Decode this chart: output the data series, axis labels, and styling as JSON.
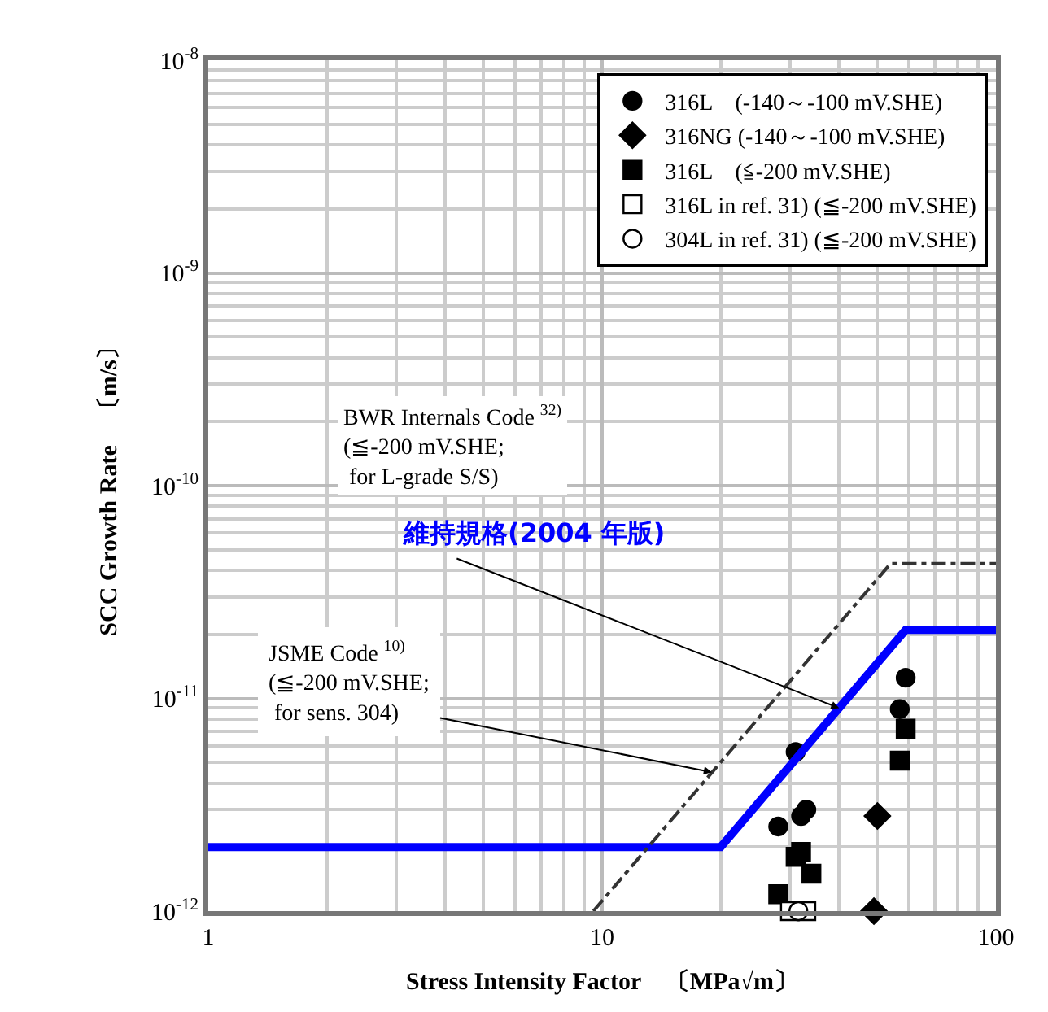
{
  "chart_data": {
    "type": "scatter",
    "xlabel": "Stress Intensity Factor　〔MPa√m〕",
    "ylabel": "SCC Growth Rate　〔m/s〕",
    "log": "xy",
    "grid": true,
    "legend": "top right",
    "xlim": [
      1,
      100
    ],
    "xticks": [
      1,
      10,
      100
    ],
    "ylim": [
      1e-12,
      1e-08
    ],
    "yticks": [
      {
        "value": 1e-08,
        "label": "10$^{-8}$"
      },
      {
        "value": 1e-09,
        "label": "10$^{-9}$"
      },
      {
        "value": 1e-10,
        "label": "10$^{-10}$"
      },
      {
        "value": 1e-11,
        "label": "10$^{-11}$"
      },
      {
        "value": 1e-12,
        "label": "10$^{-12}$"
      }
    ],
    "series": [
      {
        "name": "316L　(-140～-100 mV.SHE)",
        "marker": "circle",
        "color": "#000000",
        "x": [
          59,
          57,
          31,
          33,
          32,
          28
        ],
        "values": [
          1.25e-11,
          8.9e-12,
          5.6e-12,
          3e-12,
          2.8e-12,
          2.5e-12
        ]
      },
      {
        "name": "316NG (-140～-100 mV.SHE)",
        "marker": "diamond",
        "color": "#000000",
        "x": [
          50,
          49
        ],
        "values": [
          2.8e-12,
          1e-12
        ]
      },
      {
        "name": "316L　(≦-200 mV.SHE)",
        "marker": "square",
        "color": "#000000",
        "x": [
          59,
          57,
          32,
          31,
          34,
          28
        ],
        "values": [
          7.2e-12,
          5.1e-12,
          1.9e-12,
          1.8e-12,
          1.5e-12,
          1.2e-12
        ]
      },
      {
        "name": "316L in ref. 31) (≦-200 mV.SHE)",
        "marker": "square",
        "color": "#ffffff",
        "x": [
          30,
          33
        ],
        "values": [
          1e-12,
          1e-12
        ]
      },
      {
        "name": "304L in ref. 31) (≦-200 mV.SHE)",
        "marker": "circle",
        "color": "#ffffff",
        "x": [
          31.5
        ],
        "values": [
          1e-12
        ]
      },
      {
        "type": "line",
        "marker": "none",
        "line_style": "solid",
        "color": "#0000ff",
        "x": [
          1,
          20,
          59,
          100
        ],
        "values": [
          2e-12,
          2e-12,
          2.1e-11,
          2.1e-11
        ]
      },
      {
        "type": "line",
        "marker": "none",
        "line_style": "dashed",
        "color": "#333333",
        "x": [
          9.5,
          54,
          100
        ],
        "values": [
          1e-12,
          4.3e-11,
          4.3e-11
        ]
      }
    ],
    "annotations": [
      "BWR Internals Code $^{32)}$\n(≦-200 mV.SHE;\n for L-grade S/S)",
      {
        "text": "維持規格(2004 年版)",
        "x": 40,
        "y": 9e-12
      },
      {
        "text": "JSME Code $^{10)}$\n(≦-200 mV.SHE;\n for sens. 304)",
        "x": 19,
        "y": 4.5e-12
      }
    ]
  }
}
